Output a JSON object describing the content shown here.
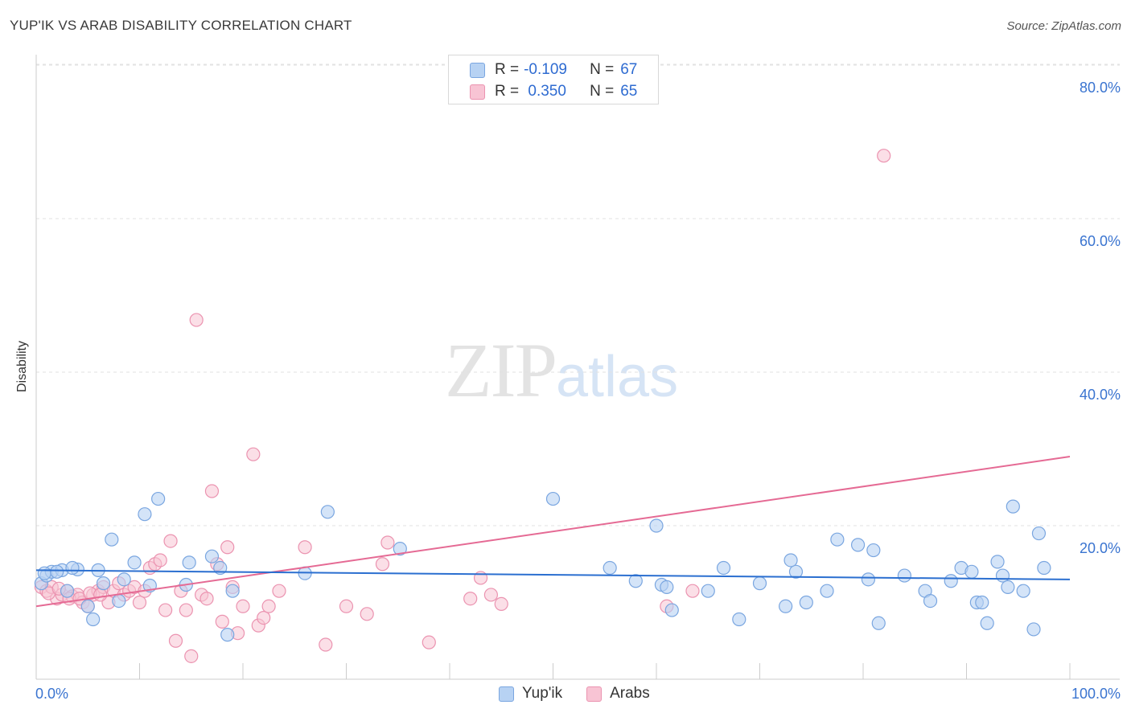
{
  "title": "YUP'IK VS ARAB DISABILITY CORRELATION CHART",
  "source": "Source: ZipAtlas.com",
  "watermark": {
    "zip": "ZIP",
    "atlas": "atlas"
  },
  "legend": {
    "rows": [
      {
        "r_label": "R =",
        "r_value": "-0.109",
        "n_label": "N =",
        "n_value": "67"
      },
      {
        "r_label": "R =",
        "r_value": " 0.350",
        "n_label": "N =",
        "n_value": "65"
      }
    ]
  },
  "colors": {
    "yupik_fill": "#b7d2f3",
    "yupik_stroke": "#7aa6e0",
    "yupik_line": "#2b6fd0",
    "arab_fill": "#f8c4d4",
    "arab_stroke": "#eb93b0",
    "arab_line": "#e56a94",
    "grid": "#e2e2e2",
    "tick_label": "#3a74d0"
  },
  "chart_data": {
    "type": "scatter",
    "title": "YUP'IK VS ARAB DISABILITY CORRELATION CHART",
    "xlabel": "",
    "ylabel": "Disability",
    "xlim": [
      0,
      100
    ],
    "ylim": [
      0,
      82
    ],
    "x_tick_labels": [
      "0.0%",
      "100.0%"
    ],
    "y_ticks": [
      20,
      40,
      60,
      80
    ],
    "y_tick_labels": [
      "20.0%",
      "40.0%",
      "60.0%",
      "80.0%"
    ],
    "grid": true,
    "legend_position": "bottom",
    "series": [
      {
        "name": "Yup'ik",
        "color": "#b7d2f3",
        "trend": {
          "x": [
            0,
            100
          ],
          "y": [
            14.2,
            13.0
          ]
        },
        "points": [
          [
            0.5,
            12.5
          ],
          [
            1,
            13.5
          ],
          [
            1.5,
            14
          ],
          [
            2.5,
            14.2
          ],
          [
            3,
            11.5
          ],
          [
            4,
            14.3
          ],
          [
            5,
            9.5
          ],
          [
            5.5,
            7.8
          ],
          [
            6.5,
            12.5
          ],
          [
            7.3,
            18.2
          ],
          [
            8,
            10.2
          ],
          [
            8.5,
            13
          ],
          [
            9.5,
            15.2
          ],
          [
            10.5,
            21.5
          ],
          [
            11,
            12.2
          ],
          [
            11.8,
            23.5
          ],
          [
            14.8,
            15.2
          ],
          [
            14.5,
            12.3
          ],
          [
            17,
            16
          ],
          [
            17.8,
            14.5
          ],
          [
            18.5,
            5.8
          ],
          [
            19,
            11.5
          ],
          [
            26,
            13.8
          ],
          [
            28.2,
            21.8
          ],
          [
            35.2,
            17
          ],
          [
            50,
            23.5
          ],
          [
            55.5,
            14.5
          ],
          [
            58,
            12.8
          ],
          [
            60,
            20
          ],
          [
            60.5,
            12.3
          ],
          [
            61,
            12
          ],
          [
            61.5,
            9
          ],
          [
            65,
            11.5
          ],
          [
            66.5,
            14.5
          ],
          [
            68,
            7.8
          ],
          [
            70,
            12.5
          ],
          [
            72.5,
            9.5
          ],
          [
            73.5,
            14
          ],
          [
            73,
            15.5
          ],
          [
            74.5,
            10
          ],
          [
            76.5,
            11.5
          ],
          [
            77.5,
            18.2
          ],
          [
            79.5,
            17.5
          ],
          [
            80.5,
            13
          ],
          [
            81,
            16.8
          ],
          [
            81.5,
            7.3
          ],
          [
            84,
            13.5
          ],
          [
            86,
            11.5
          ],
          [
            86.5,
            10.2
          ],
          [
            88.5,
            12.8
          ],
          [
            89.5,
            14.5
          ],
          [
            90.5,
            14
          ],
          [
            91,
            10
          ],
          [
            91.5,
            10
          ],
          [
            92,
            7.3
          ],
          [
            93,
            15.3
          ],
          [
            93.5,
            13.5
          ],
          [
            94,
            12
          ],
          [
            94.5,
            22.5
          ],
          [
            95.5,
            11.5
          ],
          [
            96.5,
            6.5
          ],
          [
            97,
            19
          ],
          [
            97.5,
            14.5
          ],
          [
            0.8,
            13.8
          ],
          [
            3.5,
            14.5
          ],
          [
            6,
            14.2
          ],
          [
            2,
            14
          ]
        ]
      },
      {
        "name": "Arabs",
        "color": "#f8c4d4",
        "trend": {
          "x": [
            0,
            100
          ],
          "y": [
            9.5,
            29.0
          ]
        },
        "points": [
          [
            0.5,
            12
          ],
          [
            1,
            11.5
          ],
          [
            1.5,
            12
          ],
          [
            2,
            10.5
          ],
          [
            2.5,
            11
          ],
          [
            3,
            11.5
          ],
          [
            3.5,
            10.8
          ],
          [
            4,
            11
          ],
          [
            4.5,
            10
          ],
          [
            5,
            9.5
          ],
          [
            5.5,
            11
          ],
          [
            6,
            11.5
          ],
          [
            6.5,
            12
          ],
          [
            7,
            10
          ],
          [
            7.5,
            11.5
          ],
          [
            8,
            12.5
          ],
          [
            8.5,
            11
          ],
          [
            9,
            11.5
          ],
          [
            9.5,
            12
          ],
          [
            10,
            10
          ],
          [
            10.5,
            11.5
          ],
          [
            11,
            14.5
          ],
          [
            11.5,
            15
          ],
          [
            12,
            15.5
          ],
          [
            12.5,
            9
          ],
          [
            13,
            18
          ],
          [
            13.5,
            5
          ],
          [
            14,
            11.5
          ],
          [
            14.5,
            9
          ],
          [
            15,
            3
          ],
          [
            15.5,
            46.8
          ],
          [
            16,
            11
          ],
          [
            16.5,
            10.5
          ],
          [
            17,
            24.5
          ],
          [
            17.5,
            15
          ],
          [
            18,
            7.5
          ],
          [
            18.5,
            17.2
          ],
          [
            19,
            12
          ],
          [
            19.5,
            6
          ],
          [
            20,
            9.5
          ],
          [
            21,
            29.3
          ],
          [
            21.5,
            7
          ],
          [
            22,
            8
          ],
          [
            22.5,
            9.5
          ],
          [
            23.5,
            11.5
          ],
          [
            26,
            17.2
          ],
          [
            28,
            4.5
          ],
          [
            30,
            9.5
          ],
          [
            32,
            8.5
          ],
          [
            33.5,
            15
          ],
          [
            34,
            17.8
          ],
          [
            38,
            4.8
          ],
          [
            42,
            10.5
          ],
          [
            43,
            13.2
          ],
          [
            44,
            11
          ],
          [
            45,
            9.8
          ],
          [
            61,
            9.5
          ],
          [
            63.5,
            11.5
          ],
          [
            82,
            68.2
          ],
          [
            1.2,
            11.2
          ],
          [
            2.2,
            11.8
          ],
          [
            3.2,
            10.5
          ],
          [
            4.2,
            10.5
          ],
          [
            5.2,
            11.2
          ],
          [
            6.2,
            11
          ]
        ]
      }
    ]
  }
}
